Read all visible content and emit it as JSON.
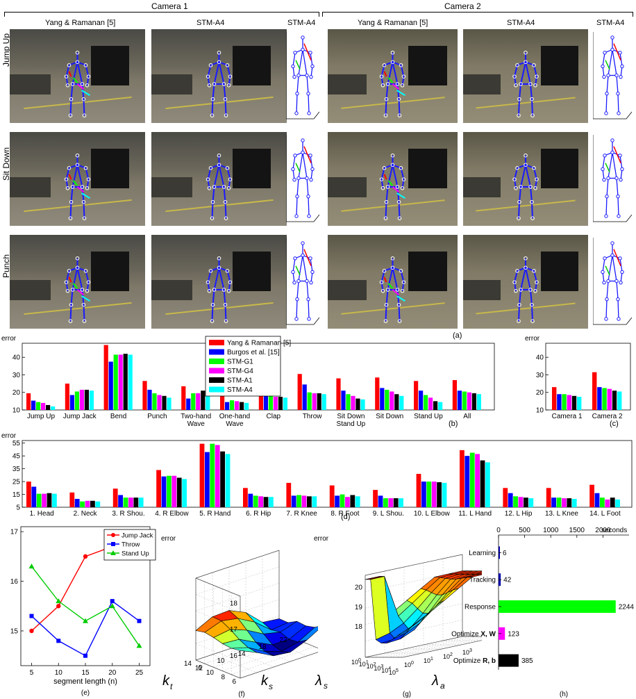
{
  "top_headers": {
    "camera1": "Camera 1",
    "camera2": "Camera 2",
    "col_yang_c1": "Yang & Ramanan [5]",
    "col_stm_c1": "STM-A4",
    "col_stm3d_c1": "STM-A4",
    "col_yang_c2": "Yang & Ramanan [5]",
    "col_stm_c2": "STM-A4",
    "col_stm3d_c2": "STM-A4"
  },
  "row_labels": [
    "Jump Up",
    "Sit Down",
    "Punch"
  ],
  "panel_labels": {
    "a": "(a)",
    "b": "(b)",
    "c": "(c)",
    "d": "(d)",
    "e": "(e)",
    "f": "(f)",
    "g": "(g)",
    "h": "(h)"
  },
  "colors": {
    "Yang & Ramanan [5]": "#ff0000",
    "Burgos et al. [15]": "#0000ff",
    "STM-G1": "#00ff00",
    "STM-G4": "#ff00ff",
    "STM-A1": "#000000",
    "STM-A4": "#00ffff"
  },
  "chart_data": [
    {
      "id": "b",
      "type": "bar",
      "ylabel": "error",
      "ylim": [
        10,
        48
      ],
      "yticks": [
        10,
        20,
        30,
        40
      ],
      "categories": [
        "Jump Up",
        "Jump Jack",
        "Bend",
        "Punch",
        "Two-hand\nWave",
        "One-hand\nWave",
        "Clap",
        "Throw",
        "Sit Down\nStand Up",
        "Sit Down",
        "Stand Up",
        "All"
      ],
      "legend_position": "top-center",
      "series": [
        {
          "name": "Yang & Ramanan [5]",
          "values": [
            19.5,
            25,
            47,
            26.5,
            23.5,
            19,
            22.5,
            30.5,
            28,
            28.5,
            26.5,
            27
          ]
        },
        {
          "name": "Burgos et al. [15]",
          "values": [
            15.3,
            18.5,
            37.5,
            21.5,
            16.5,
            14.5,
            18,
            24.5,
            21,
            22.5,
            21,
            21
          ]
        },
        {
          "name": "STM-G1",
          "values": [
            14.5,
            20.5,
            41.5,
            19.5,
            19.5,
            15.5,
            18,
            20,
            19,
            21.5,
            18.5,
            20.5
          ]
        },
        {
          "name": "STM-G4",
          "values": [
            14,
            21.5,
            41.5,
            18.5,
            19.5,
            15,
            17.5,
            19.5,
            18,
            20.5,
            17,
            20
          ]
        },
        {
          "name": "STM-A1",
          "values": [
            12.8,
            21.5,
            42,
            18,
            21,
            14.5,
            17.5,
            19.5,
            16.5,
            19,
            15,
            19.5
          ]
        },
        {
          "name": "STM-A4",
          "values": [
            12,
            21,
            41.5,
            17,
            19.5,
            14,
            17,
            19,
            16,
            18,
            14.5,
            19
          ]
        }
      ]
    },
    {
      "id": "c",
      "type": "bar",
      "ylabel": "error",
      "ylim": [
        10,
        48
      ],
      "yticks": [
        10,
        20,
        30,
        40
      ],
      "categories": [
        "Camera 1",
        "Camera 2"
      ],
      "series": [
        {
          "name": "Yang & Ramanan [5]",
          "values": [
            23,
            31.5
          ]
        },
        {
          "name": "Burgos et al. [15]",
          "values": [
            19,
            23
          ]
        },
        {
          "name": "STM-G1",
          "values": [
            19,
            22.5
          ]
        },
        {
          "name": "STM-G4",
          "values": [
            18.5,
            22
          ]
        },
        {
          "name": "STM-A1",
          "values": [
            18,
            21
          ]
        },
        {
          "name": "STM-A4",
          "values": [
            17.5,
            20.5
          ]
        }
      ]
    },
    {
      "id": "d",
      "type": "bar",
      "ylabel": "error",
      "ylim": [
        5,
        57
      ],
      "yticks": [
        5,
        15,
        25,
        35,
        45,
        55
      ],
      "categories": [
        "1. Head",
        "2. Neck",
        "3. R Shou.",
        "4. R Elbow",
        "5. R Hand",
        "6. R Hip",
        "7. R Knee",
        "8. R Foot",
        "9. L Shou.",
        "10. L Elbow",
        "11. L Hand",
        "12. L Hip",
        "13. L Knee",
        "14. L Foot"
      ],
      "series": [
        {
          "name": "Yang & Ramanan [5]",
          "values": [
            25,
            16.5,
            19.5,
            34,
            54.5,
            20,
            24,
            22,
            18.5,
            31,
            49.5,
            20,
            20,
            22.5
          ]
        },
        {
          "name": "Burgos et al. [15]",
          "values": [
            21,
            11.5,
            14.5,
            29,
            48,
            15.5,
            14,
            14,
            14,
            25,
            45,
            16,
            12.5,
            16
          ]
        },
        {
          "name": "STM-G1",
          "values": [
            15.5,
            9.5,
            12.5,
            29.5,
            54.5,
            14,
            14.5,
            15,
            12,
            25,
            47.5,
            13.5,
            12.5,
            12.5
          ]
        },
        {
          "name": "STM-G4",
          "values": [
            15.5,
            10,
            12.5,
            29.5,
            53.5,
            13.5,
            14,
            13,
            12,
            25,
            46.5,
            13,
            12,
            11
          ]
        },
        {
          "name": "STM-A1",
          "values": [
            16,
            10,
            12.5,
            28,
            48.5,
            13,
            13.5,
            14.5,
            12,
            24.5,
            41.5,
            12.5,
            12,
            12.5
          ]
        },
        {
          "name": "STM-A4",
          "values": [
            15.5,
            9.5,
            12.5,
            27,
            46.5,
            13,
            13.5,
            13.5,
            12,
            24,
            40,
            12,
            11.5,
            11
          ]
        }
      ]
    },
    {
      "id": "e",
      "type": "line",
      "xlabel": "segment length (n)",
      "x": [
        5,
        10,
        15,
        20,
        25
      ],
      "xticks": [
        5,
        10,
        15,
        20,
        25
      ],
      "xlim": [
        3,
        27
      ],
      "ylim": [
        14.3,
        17.1
      ],
      "yticks": [
        15,
        16,
        17
      ],
      "legend_position": "top-right",
      "series": [
        {
          "name": "Jump Jack",
          "color": "#ff0000",
          "marker": "circle",
          "values": [
            15.0,
            15.5,
            16.5,
            16.7,
            16.8
          ]
        },
        {
          "name": "Throw",
          "color": "#0000ff",
          "marker": "square",
          "values": [
            15.3,
            14.8,
            14.5,
            15.6,
            15.2
          ]
        },
        {
          "name": "Stand Up",
          "color": "#00cc00",
          "marker": "triangle",
          "values": [
            16.3,
            15.6,
            15.2,
            15.5,
            14.7
          ]
        }
      ]
    },
    {
      "id": "f",
      "type": "surface",
      "zlabel": "error",
      "xlabel_sub": "t",
      "ylabel_sub": "s",
      "axis_letter": "k",
      "zticks": [
        16,
        17,
        18
      ],
      "xticks": [
        6,
        10,
        14,
        18,
        22
      ],
      "yticks": [
        6,
        8,
        10,
        12,
        14
      ]
    },
    {
      "id": "g",
      "type": "surface",
      "zlabel": "error",
      "xlabel": "λs",
      "ylabel": "λa",
      "zticks": [
        18,
        19,
        20
      ],
      "lambda_s_ticks": [
        "10^0",
        "10^1",
        "10^2",
        "10^3",
        "10^4",
        "10^5"
      ],
      "lambda_a_ticks": [
        "10^0",
        "10^1",
        "10^2",
        "10^3",
        "10^4",
        "10^5"
      ]
    },
    {
      "id": "h",
      "type": "bar",
      "orientation": "horizontal",
      "xlabel": "seconds",
      "xlim": [
        0,
        2500
      ],
      "xticks": [
        0,
        500,
        1000,
        1500,
        2000
      ],
      "categories": [
        "Learning",
        "Tracking",
        "Response",
        "Optimize X, W",
        "Optimize R, b"
      ],
      "values": [
        6,
        42,
        2244,
        123,
        385
      ],
      "bar_colors": [
        "#0000aa",
        "#0000aa",
        "#00ff00",
        "#ff00ff",
        "#000000"
      ]
    }
  ]
}
